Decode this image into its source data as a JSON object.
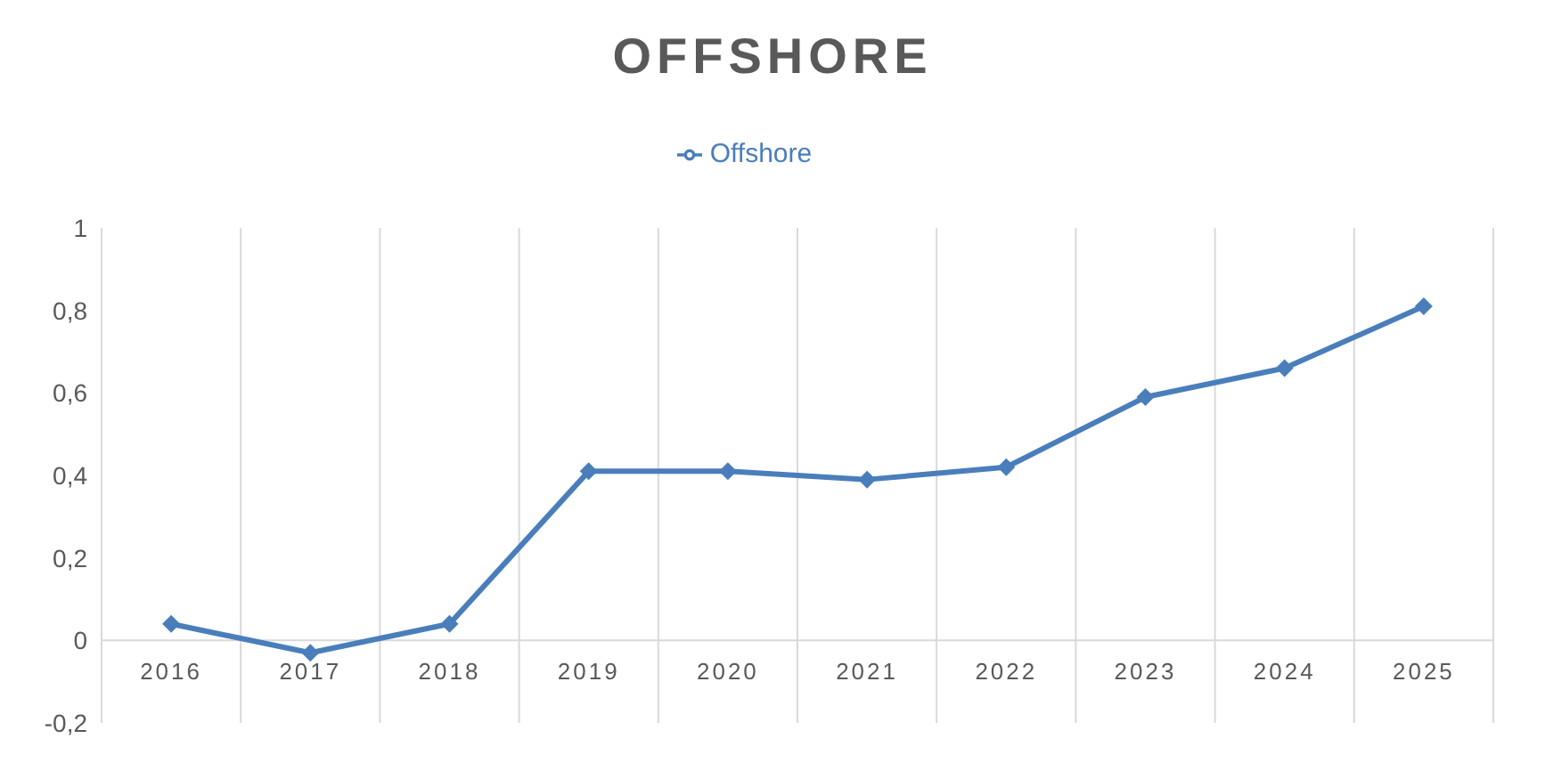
{
  "chart_data": {
    "type": "line",
    "title": "OFFSHORE",
    "categories": [
      "2016",
      "2017",
      "2018",
      "2019",
      "2020",
      "2021",
      "2022",
      "2023",
      "2024",
      "2025"
    ],
    "series": [
      {
        "name": "Offshore",
        "color": "#4a7ebb",
        "values": [
          0.04,
          -0.03,
          0.04,
          0.41,
          0.41,
          0.39,
          0.42,
          0.59,
          0.66,
          0.81
        ]
      }
    ],
    "ylim": [
      -0.2,
      1
    ],
    "yticks": [
      {
        "value": -0.2,
        "label": "-0,2"
      },
      0,
      {
        "value": 0.2,
        "label": "0,2"
      },
      {
        "value": 0.4,
        "label": "0,4"
      },
      {
        "value": 0.6,
        "label": "0,6"
      },
      {
        "value": 0.8,
        "label": "0,8"
      },
      1
    ],
    "grid": "x",
    "legend": "top",
    "marker": "diamond",
    "line_style": "solid"
  }
}
